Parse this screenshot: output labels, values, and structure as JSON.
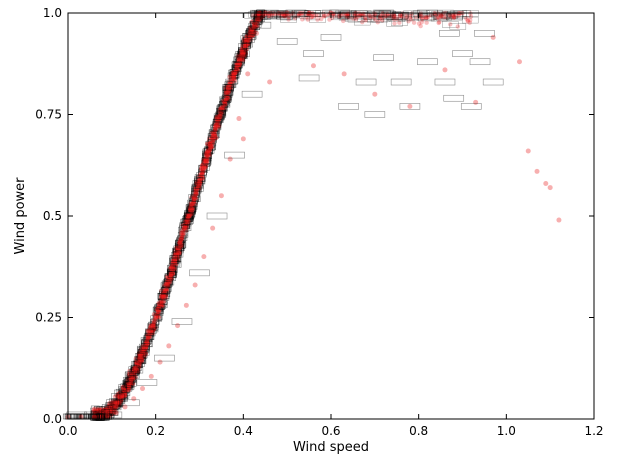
{
  "chart_data": {
    "type": "scatter",
    "title": "",
    "xlabel": "Wind speed",
    "ylabel": "Wind power",
    "xlim": [
      0.0,
      1.2
    ],
    "ylim": [
      0.0,
      1.0
    ],
    "xticks": [
      0.0,
      0.2,
      0.4,
      0.6,
      0.8,
      1.0,
      1.2
    ],
    "xtick_labels": [
      "0.0",
      "0.2",
      "0.4",
      "0.6",
      "0.8",
      "1.0",
      "1.2"
    ],
    "yticks": [
      0.0,
      0.25,
      0.5,
      0.75,
      1.0
    ],
    "ytick_labels": [
      "0.0",
      "0.25",
      "0.5",
      "0.75",
      "1.0"
    ],
    "grid": false,
    "legend": "none",
    "colors": {
      "points": "#e8191b",
      "boxes": "#000000"
    },
    "series": [
      {
        "marker": "circle",
        "color": "#e8191b",
        "points": [
          [
            0.0,
            0.005
          ],
          [
            0.03,
            0.005
          ],
          [
            0.06,
            0.005
          ],
          [
            0.09,
            0.008
          ],
          [
            0.11,
            0.015
          ],
          [
            0.13,
            0.03
          ],
          [
            0.15,
            0.05
          ],
          [
            0.17,
            0.075
          ],
          [
            0.19,
            0.105
          ],
          [
            0.21,
            0.14
          ],
          [
            0.23,
            0.18
          ],
          [
            0.25,
            0.23
          ],
          [
            0.27,
            0.28
          ],
          [
            0.29,
            0.33
          ],
          [
            0.31,
            0.4
          ],
          [
            0.33,
            0.47
          ],
          [
            0.35,
            0.55
          ],
          [
            0.37,
            0.64
          ],
          [
            0.39,
            0.74
          ],
          [
            0.41,
            0.85
          ],
          [
            0.43,
            0.95
          ],
          [
            0.45,
            1.0
          ],
          [
            0.5,
            1.0
          ],
          [
            0.55,
            1.0
          ],
          [
            0.6,
            1.0
          ],
          [
            0.56,
            0.87
          ],
          [
            0.63,
            0.85
          ],
          [
            0.7,
            0.8
          ],
          [
            0.78,
            0.77
          ],
          [
            0.86,
            0.86
          ],
          [
            0.93,
            0.78
          ],
          [
            0.97,
            0.94
          ],
          [
            1.03,
            0.88
          ],
          [
            1.05,
            0.66
          ],
          [
            1.07,
            0.61
          ],
          [
            1.09,
            0.58
          ],
          [
            1.1,
            0.57
          ],
          [
            1.12,
            0.49
          ],
          [
            0.4,
            0.69
          ],
          [
            0.46,
            0.83
          ]
        ]
      },
      {
        "marker": "box",
        "color": "#000000",
        "points": [
          [
            0.02,
            0.01
          ],
          [
            0.06,
            0.01
          ],
          [
            0.1,
            0.01
          ],
          [
            0.14,
            0.04
          ],
          [
            0.18,
            0.09
          ],
          [
            0.22,
            0.15
          ],
          [
            0.26,
            0.24
          ],
          [
            0.3,
            0.36
          ],
          [
            0.34,
            0.5
          ],
          [
            0.38,
            0.65
          ],
          [
            0.42,
            0.8
          ],
          [
            0.44,
            0.97
          ],
          [
            0.52,
            1.0
          ],
          [
            0.62,
            1.0
          ],
          [
            0.72,
            1.0
          ],
          [
            0.82,
            1.0
          ],
          [
            0.5,
            0.93
          ],
          [
            0.56,
            0.9
          ],
          [
            0.6,
            0.94
          ],
          [
            0.68,
            0.83
          ],
          [
            0.72,
            0.89
          ],
          [
            0.76,
            0.83
          ],
          [
            0.82,
            0.88
          ],
          [
            0.86,
            0.83
          ],
          [
            0.9,
            0.9
          ],
          [
            0.95,
            0.95
          ],
          [
            0.97,
            0.83
          ],
          [
            0.64,
            0.77
          ],
          [
            0.7,
            0.75
          ],
          [
            0.78,
            0.77
          ],
          [
            0.88,
            0.79
          ],
          [
            0.92,
            0.77
          ],
          [
            0.55,
            0.84
          ],
          [
            0.87,
            0.95
          ],
          [
            0.94,
            0.88
          ]
        ]
      }
    ]
  }
}
